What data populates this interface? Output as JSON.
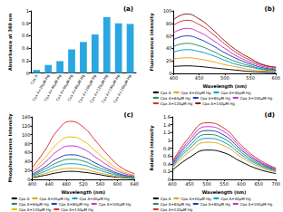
{
  "chart_data": [
    {
      "type": "bar",
      "title": "(a)",
      "y_label": "Absorbance at 360 nm",
      "categories": [
        "Cpx A",
        "Cpx A+20µM Hg",
        "Cpx A+40µM Hg",
        "Cpx A+60µM Hg",
        "Cpx A+80µM Hg",
        "Cpx A+100µM Hg",
        "Cpx A+120µM Hg",
        "Cpx A+140µM Hg",
        "Cpx A+160µM Hg"
      ],
      "values": [
        0.05,
        0.13,
        0.19,
        0.38,
        0.5,
        0.62,
        0.9,
        0.8,
        0.79
      ],
      "color": "#2aa7e0",
      "ylim": [
        0,
        1
      ],
      "yticks": [
        0,
        0.2,
        0.4,
        0.6,
        0.8,
        1
      ],
      "grid": false
    },
    {
      "type": "line",
      "title": "(b)",
      "x_label": "Wavelength (nm)",
      "y_label": "Fluorescence intensity",
      "x": [
        400,
        425,
        450,
        475,
        500,
        525,
        550,
        575,
        600
      ],
      "xlim": [
        400,
        600
      ],
      "xticks": [
        400,
        450,
        500,
        550,
        600
      ],
      "ylim": [
        0,
        100
      ],
      "yticks": [
        0,
        20,
        40,
        60,
        80,
        100
      ],
      "grid": false,
      "legend": "bottom",
      "series": [
        {
          "name": "Cpx A",
          "color": "#000000",
          "values": [
            11,
            12,
            11,
            9,
            7,
            5,
            3,
            2,
            1
          ]
        },
        {
          "name": "Cpx A+20µM Hg",
          "color": "#e8a317",
          "values": [
            23,
            25,
            23,
            19,
            14,
            10,
            6,
            4,
            3
          ]
        },
        {
          "name": "Cpx A+40µM Hg",
          "color": "#00a0c6",
          "values": [
            34,
            38,
            35,
            29,
            21,
            14,
            10,
            6,
            4
          ]
        },
        {
          "name": "Cpx A+60µM Hg",
          "color": "#2e8b57",
          "values": [
            43,
            48,
            44,
            36,
            26,
            18,
            12,
            7,
            5
          ]
        },
        {
          "name": "Cpx A+80µM Hg",
          "color": "#1f3fbf",
          "values": [
            54,
            60,
            55,
            45,
            33,
            23,
            15,
            9,
            6
          ]
        },
        {
          "name": "Cpx A+100µM Hg",
          "color": "#cc33cc",
          "values": [
            65,
            72,
            66,
            54,
            40,
            27,
            18,
            11,
            7
          ]
        },
        {
          "name": "Cpx A+120µM Hg",
          "color": "#e03030",
          "values": [
            77,
            85,
            78,
            64,
            47,
            32,
            21,
            13,
            9
          ]
        },
        {
          "name": "Cpx A+140µM Hg",
          "color": "#8b1a1a",
          "values": [
            86,
            95,
            87,
            71,
            52,
            36,
            24,
            14,
            10
          ]
        }
      ]
    },
    {
      "type": "line",
      "title": "(c)",
      "x_label": "Wavelength (nm)",
      "y_label": "Phosphorescence Intensity",
      "x": [
        400,
        430,
        460,
        490,
        520,
        550,
        580,
        610,
        640
      ],
      "xlim": [
        400,
        640
      ],
      "xticks": [
        400,
        440,
        480,
        520,
        560,
        600,
        640
      ],
      "ylim": [
        0,
        140
      ],
      "yticks": [
        0,
        20,
        40,
        60,
        80,
        100,
        120,
        140
      ],
      "grid": false,
      "legend": "bottom",
      "series": [
        {
          "name": "Cpx A",
          "color": "#000000",
          "values": [
            4,
            9,
            15,
            18,
            16,
            12,
            7,
            4,
            2
          ]
        },
        {
          "name": "Cpx A+20µM Hg",
          "color": "#e8a317",
          "values": [
            5,
            13,
            21,
            25,
            23,
            16,
            10,
            5,
            3
          ]
        },
        {
          "name": "Cpx A+40µM Hg",
          "color": "#00a0c6",
          "values": [
            7,
            18,
            30,
            35,
            32,
            23,
            14,
            7,
            4
          ]
        },
        {
          "name": "Cpx A+60µM Hg",
          "color": "#2e8b57",
          "values": [
            9,
            23,
            38,
            45,
            41,
            29,
            18,
            9,
            5
          ]
        },
        {
          "name": "Cpx A+80µM Hg",
          "color": "#1f3fbf",
          "values": [
            11,
            28,
            47,
            55,
            50,
            36,
            22,
            11,
            6
          ]
        },
        {
          "name": "Cpx A+100µM Hg",
          "color": "#cc33cc",
          "values": [
            15,
            38,
            64,
            75,
            68,
            49,
            30,
            15,
            8
          ]
        },
        {
          "name": "Cpx A+120µM Hg",
          "color": "#e8c000",
          "values": [
            19,
            48,
            81,
            95,
            86,
            62,
            38,
            19,
            10
          ]
        },
        {
          "name": "Cpx A+140µM Hg",
          "color": "#e03030",
          "values": [
            26,
            65,
            110,
            130,
            117,
            85,
            52,
            26,
            13
          ]
        }
      ]
    },
    {
      "type": "line",
      "title": "(d)",
      "x_label": "Wavelength (nm)",
      "y_label": "Relative Intensity",
      "x": [
        400,
        450,
        500,
        550,
        600,
        650,
        700
      ],
      "xlim": [
        400,
        700
      ],
      "xticks": [
        400,
        450,
        500,
        550,
        600,
        650,
        700
      ],
      "ylim": [
        0,
        1.6
      ],
      "yticks": [
        0,
        0.2,
        0.4,
        0.6,
        0.8,
        1,
        1.2,
        1.4,
        1.6
      ],
      "grid": false,
      "legend": "bottom",
      "series": [
        {
          "name": "Cpx A",
          "color": "#000000",
          "values": [
            0.23,
            0.56,
            0.75,
            0.68,
            0.45,
            0.26,
            0.15
          ]
        },
        {
          "name": "Cpx A+20µM Hg",
          "color": "#e8a317",
          "values": [
            0.29,
            0.71,
            0.95,
            0.86,
            0.57,
            0.33,
            0.19
          ]
        },
        {
          "name": "Cpx A+40µM Hg",
          "color": "#00a0c6",
          "values": [
            0.32,
            0.79,
            1.05,
            0.95,
            0.63,
            0.37,
            0.21
          ]
        },
        {
          "name": "Cpx A+60µM Hg",
          "color": "#2e8b57",
          "values": [
            0.35,
            0.86,
            1.15,
            1.04,
            0.69,
            0.4,
            0.23
          ]
        },
        {
          "name": "Cpx A+80µM Hg",
          "color": "#1f3fbf",
          "values": [
            0.38,
            0.94,
            1.25,
            1.13,
            0.75,
            0.44,
            0.25
          ]
        },
        {
          "name": "Cpx A+100µM Hg",
          "color": "#cc33cc",
          "values": [
            0.41,
            1.01,
            1.35,
            1.22,
            0.81,
            0.47,
            0.27
          ]
        },
        {
          "name": "Cpx A+120µM Hg",
          "color": "#e03030",
          "values": [
            0.44,
            1.09,
            1.45,
            1.31,
            0.87,
            0.51,
            0.29
          ]
        }
      ]
    }
  ]
}
